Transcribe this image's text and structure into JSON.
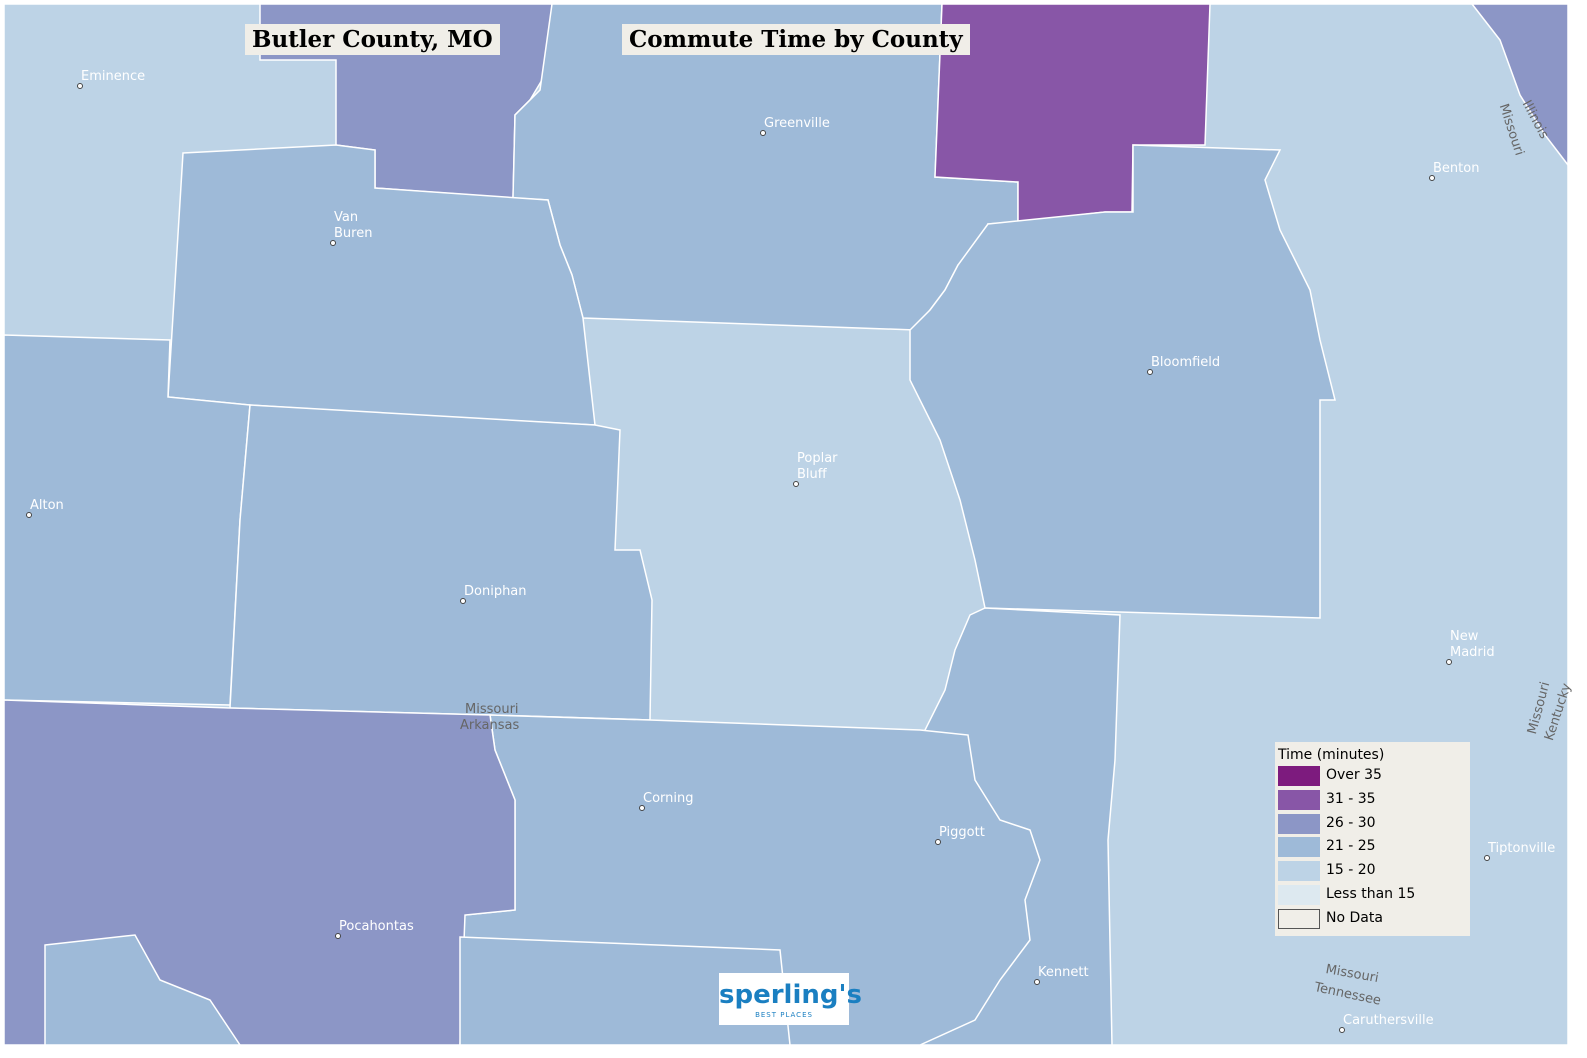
{
  "header": {
    "place": "Butler County, MO",
    "title": "Commute Time by County"
  },
  "places": [
    "Eminence",
    "Greenville",
    "Van Buren",
    "Benton",
    "Bloomfield",
    "Poplar Bluff",
    "Alton",
    "Doniphan",
    "New Madrid",
    "Corning",
    "Piggott",
    "Tiptonville",
    "Pocahontas",
    "Kennett",
    "Caruthersville"
  ],
  "state_labels": [
    "Missouri",
    "Arkansas",
    "Illinois",
    "Missouri",
    "Missouri",
    "Kentucky",
    "Missouri",
    "Tennessee"
  ],
  "legend": {
    "title": "Time (minutes)",
    "items": [
      {
        "label": "Over 35",
        "color": "#7d1b7e"
      },
      {
        "label": "31 - 35",
        "color": "#8856a7"
      },
      {
        "label": "26 - 30",
        "color": "#8c96c6"
      },
      {
        "label": "21 - 25",
        "color": "#9ebad8"
      },
      {
        "label": "15 - 20",
        "color": "#bdd3e6"
      },
      {
        "label": "Less than 15",
        "color": "#dde9f0"
      },
      {
        "label": "No Data",
        "color": "#f0eee8"
      }
    ]
  },
  "logo": {
    "name": "sperling's",
    "tagline": "BEST PLACES"
  }
}
